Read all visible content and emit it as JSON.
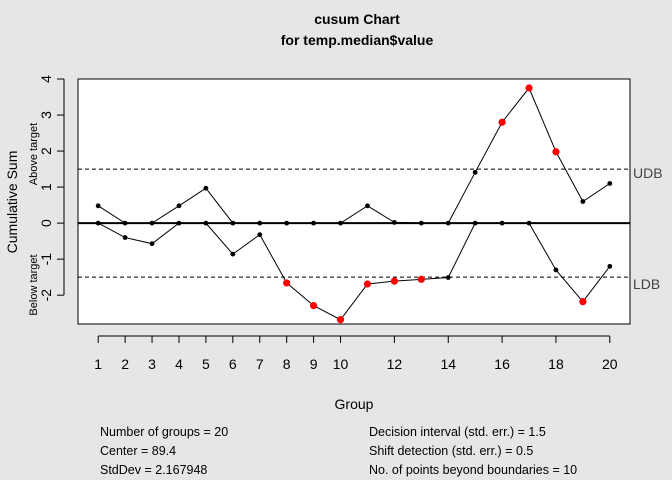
{
  "chart_data": {
    "type": "line",
    "title": "cusum Chart",
    "subtitle": "for temp.median$value",
    "xlabel": "Group",
    "ylabel": "Cumulative Sum",
    "ylabel_upper": "Above target",
    "ylabel_lower": "Below target",
    "xlim": [
      0.25,
      20.75
    ],
    "ylim": [
      -2.8,
      4.0
    ],
    "x_ticks": [
      1,
      2,
      3,
      4,
      5,
      6,
      7,
      8,
      9,
      10,
      12,
      14,
      16,
      18,
      20
    ],
    "y_ticks": [
      -2,
      -1,
      0,
      1,
      2,
      3,
      4
    ],
    "x": [
      1,
      2,
      3,
      4,
      5,
      6,
      7,
      8,
      9,
      10,
      11,
      12,
      13,
      14,
      15,
      16,
      17,
      18,
      19,
      20
    ],
    "series": [
      {
        "values": [
          0.48,
          0.0,
          0.0,
          0.48,
          0.97,
          0.0,
          0.0,
          0.0,
          0.0,
          0.0,
          0.48,
          0.02,
          0.0,
          0.0,
          1.41,
          2.8,
          3.75,
          1.98,
          0.6,
          1.1
        ],
        "beyond": [
          false,
          false,
          false,
          false,
          false,
          false,
          false,
          false,
          false,
          false,
          false,
          false,
          false,
          false,
          false,
          true,
          true,
          true,
          false,
          false
        ]
      },
      {
        "values": [
          0.0,
          -0.4,
          -0.57,
          0.0,
          0.0,
          -0.86,
          -0.32,
          -1.66,
          -2.29,
          -2.68,
          -1.69,
          -1.61,
          -1.56,
          -1.51,
          0.0,
          0.0,
          0.0,
          -1.3,
          -2.18,
          -1.2
        ],
        "beyond": [
          false,
          false,
          false,
          false,
          false,
          false,
          false,
          true,
          true,
          true,
          true,
          true,
          true,
          false,
          false,
          false,
          false,
          false,
          true,
          false
        ]
      }
    ],
    "udb": 1.5,
    "ldb": -1.5,
    "udb_label": "UDB",
    "ldb_label": "LDB",
    "colors": {
      "normal": "#000000",
      "beyond": "#ff0000",
      "background": "#e6e6e6",
      "panel": "#ffffff"
    }
  },
  "stats": {
    "left": [
      "Number of groups = 20",
      "Center = 89.4",
      "StdDev = 2.167948"
    ],
    "right": [
      "Decision interval (std. err.) = 1.5",
      "Shift detection (std. err.) = 0.5",
      "No. of points beyond boundaries = 10"
    ]
  }
}
